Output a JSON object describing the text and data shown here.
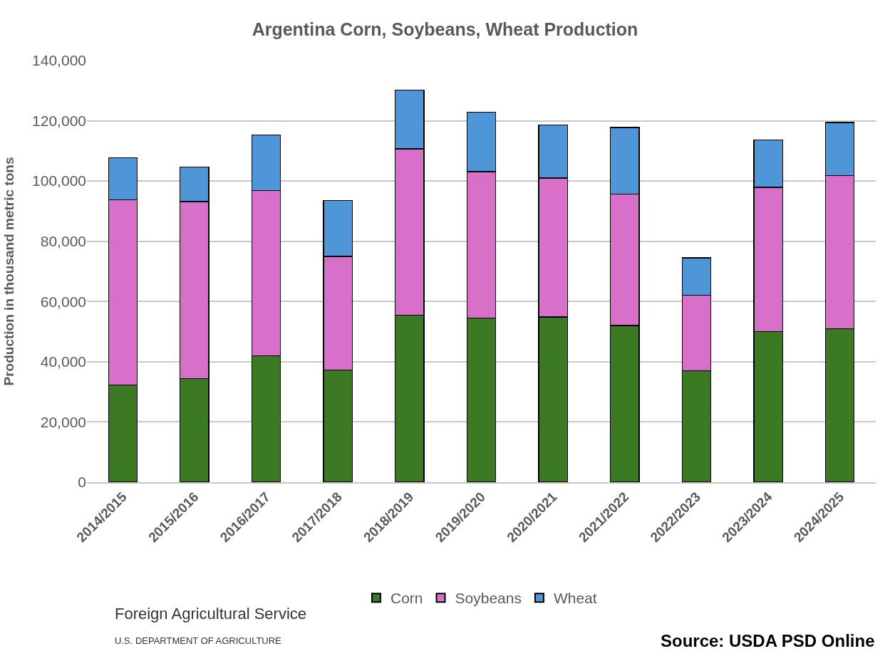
{
  "chart_data": {
    "type": "bar",
    "stacked": true,
    "title": "Argentina Corn, Soybeans, Wheat Production",
    "ylabel": "Production in thousand metric tons",
    "categories": [
      "2014/2015",
      "2015/2016",
      "2016/2017",
      "2017/2018",
      "2018/2019",
      "2019/2020",
      "2020/2021",
      "2021/2022",
      "2022/2023",
      "2023/2024",
      "2024/2025"
    ],
    "series": [
      {
        "name": "Corn",
        "color": "#3b7a23",
        "values": [
          32300,
          34400,
          42000,
          37300,
          55500,
          54500,
          54900,
          52000,
          37000,
          50100,
          51000
        ]
      },
      {
        "name": "Soybeans",
        "color": "#d86fc9",
        "values": [
          61500,
          58800,
          54900,
          37700,
          55200,
          48600,
          46100,
          43700,
          25000,
          47800,
          50800
        ]
      },
      {
        "name": "Wheat",
        "color": "#4f96d9",
        "values": [
          13900,
          11400,
          18400,
          18500,
          19500,
          19800,
          17600,
          22100,
          12500,
          15800,
          17600
        ]
      }
    ],
    "ylim": [
      0,
      140000
    ],
    "yticks": [
      {
        "value": 0,
        "label": "0"
      },
      {
        "value": 20000,
        "label": "20,000"
      },
      {
        "value": 40000,
        "label": "40,000"
      },
      {
        "value": 60000,
        "label": "60,000"
      },
      {
        "value": 80000,
        "label": "80,000"
      },
      {
        "value": 100000,
        "label": "100,000"
      },
      {
        "value": 120000,
        "label": "120,000"
      },
      {
        "value": 140000,
        "label": "140,000"
      }
    ],
    "grid": "y",
    "legend": "bottom",
    "annotations": [
      "Foreign Agricultural Service",
      "U.S. DEPARTMENT OF AGRICULTURE",
      "Source: USDA PSD Online"
    ]
  }
}
